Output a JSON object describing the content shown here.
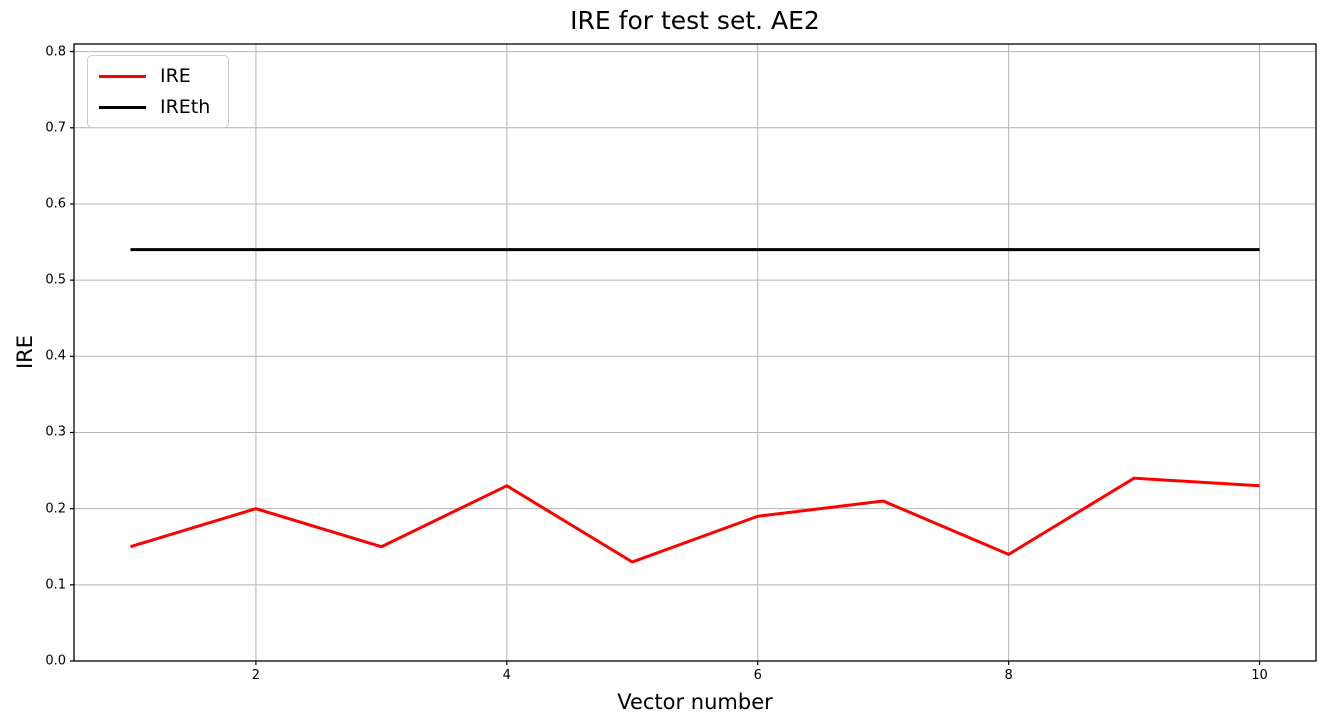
{
  "chart_data": {
    "type": "line",
    "title": "IRE for test set. AE2",
    "xlabel": "Vector number",
    "ylabel": "IRE",
    "x": [
      1,
      2,
      3,
      4,
      5,
      6,
      7,
      8,
      9,
      10
    ],
    "series": [
      {
        "name": "IRE",
        "color": "#ff0000",
        "values": [
          0.15,
          0.2,
          0.15,
          0.23,
          0.13,
          0.19,
          0.21,
          0.14,
          0.24,
          0.23
        ]
      },
      {
        "name": "IREth",
        "color": "#000000",
        "values": [
          0.54,
          0.54,
          0.54,
          0.54,
          0.54,
          0.54,
          0.54,
          0.54,
          0.54,
          0.54
        ]
      }
    ],
    "threshold_value": 0.54,
    "xlim": [
      0.55,
      10.45
    ],
    "ylim": [
      0.0,
      0.81
    ],
    "xticks": {
      "values": [
        2,
        4,
        6,
        8,
        10
      ],
      "labels": [
        "2",
        "4",
        "6",
        "8",
        "10"
      ]
    },
    "yticks": {
      "values": [
        0.0,
        0.1,
        0.2,
        0.3,
        0.4,
        0.5,
        0.6,
        0.7,
        0.8
      ],
      "labels": [
        "0.0",
        "0.1",
        "0.2",
        "0.3",
        "0.4",
        "0.5",
        "0.6",
        "0.7",
        "0.8"
      ]
    },
    "grid": true,
    "grid_color": "#b4b4b4",
    "spine_color": "#000000",
    "background_color": "#ffffff",
    "legend_position": "upper-left",
    "legend_entries": [
      "IRE",
      "IREth"
    ]
  }
}
